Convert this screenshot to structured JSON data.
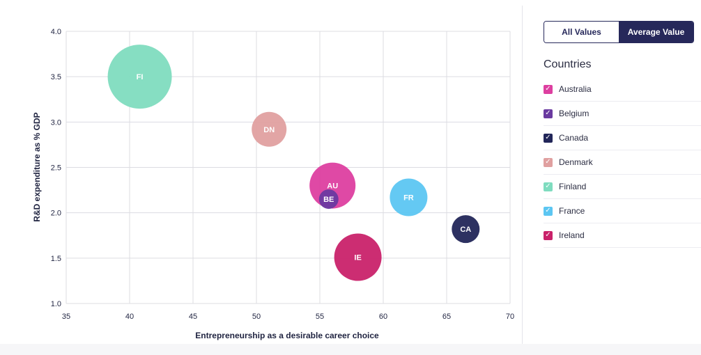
{
  "chart_data": {
    "type": "bubble",
    "xlabel": "Entrepreneurship as a desirable career choice",
    "ylabel": "R&D expenditure as % GDP",
    "xlim": [
      35,
      70
    ],
    "ylim": [
      1.0,
      4.0
    ],
    "xticks": [
      "35",
      "40",
      "45",
      "50",
      "55",
      "60",
      "65",
      "70"
    ],
    "yticks": [
      "1.0",
      "1.5",
      "2.0",
      "2.5",
      "3.0",
      "3.5",
      "4.0"
    ],
    "grid": true,
    "points": [
      {
        "country": "Finland",
        "code": "FI",
        "x": 40.8,
        "y": 3.5,
        "size": 46,
        "color": "#7fdcbf"
      },
      {
        "country": "Denmark",
        "code": "DN",
        "x": 51.0,
        "y": 2.92,
        "size": 25,
        "color": "#e0a0a0"
      },
      {
        "country": "Australia",
        "code": "AU",
        "x": 56.0,
        "y": 2.3,
        "size": 33,
        "color": "#dd3fa0"
      },
      {
        "country": "France",
        "code": "FR",
        "x": 62.0,
        "y": 2.17,
        "size": 27,
        "color": "#5cc6f2"
      },
      {
        "country": "Belgium",
        "code": "BE",
        "x": 55.7,
        "y": 2.15,
        "size": 14,
        "color": "#6a3aa0"
      },
      {
        "country": "Canada",
        "code": "CA",
        "x": 66.5,
        "y": 1.82,
        "size": 20,
        "color": "#222659"
      },
      {
        "country": "Ireland",
        "code": "IE",
        "x": 58.0,
        "y": 1.51,
        "size": 34,
        "color": "#c9226a"
      }
    ]
  },
  "toggle": {
    "all_label": "All Values",
    "average_label": "Average Value",
    "active": "average"
  },
  "legend": {
    "title": "Countries",
    "items": [
      {
        "label": "Australia",
        "color": "#dd3fa0",
        "checked": true
      },
      {
        "label": "Belgium",
        "color": "#6a3aa0",
        "checked": true
      },
      {
        "label": "Canada",
        "color": "#222659",
        "checked": true
      },
      {
        "label": "Denmark",
        "color": "#e0a0a0",
        "checked": true
      },
      {
        "label": "Finland",
        "color": "#7fdcbf",
        "checked": true
      },
      {
        "label": "France",
        "color": "#5cc6f2",
        "checked": true
      },
      {
        "label": "Ireland",
        "color": "#c9226a",
        "checked": true
      }
    ]
  }
}
